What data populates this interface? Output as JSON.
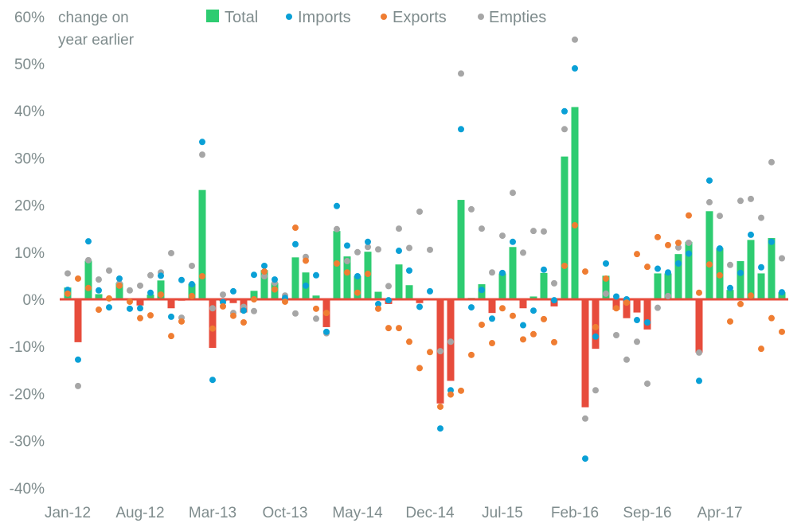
{
  "chart_data": {
    "type": "bar",
    "ylabel": [
      "change on",
      "year earlier"
    ],
    "ylim": [
      -40,
      60
    ],
    "yticks": [
      -40,
      -30,
      -20,
      -10,
      0,
      10,
      20,
      30,
      40,
      50,
      60
    ],
    "ytick_labels": [
      "-40%",
      "-30%",
      "-20%",
      "-10%",
      "0%",
      "10%",
      "20%",
      "30%",
      "40%",
      "50%",
      "60%"
    ],
    "xtick_labels": [
      "Jan-12",
      "Aug-12",
      "Mar-13",
      "Oct-13",
      "May-14",
      "Dec-14",
      "Jul-15",
      "Feb-16",
      "Sep-16",
      "Apr-17"
    ],
    "xtick_every_months": 7,
    "legend_position": "top",
    "grid": false,
    "categories": [
      "Jan-12",
      "Feb-12",
      "Mar-12",
      "Apr-12",
      "May-12",
      "Jun-12",
      "Jul-12",
      "Aug-12",
      "Sep-12",
      "Oct-12",
      "Nov-12",
      "Dec-12",
      "Jan-13",
      "Feb-13",
      "Mar-13",
      "Apr-13",
      "May-13",
      "Jun-13",
      "Jul-13",
      "Aug-13",
      "Sep-13",
      "Oct-13",
      "Nov-13",
      "Dec-13",
      "Jan-14",
      "Feb-14",
      "Mar-14",
      "Apr-14",
      "May-14",
      "Jun-14",
      "Jul-14",
      "Aug-14",
      "Sep-14",
      "Oct-14",
      "Nov-14",
      "Dec-14",
      "Jan-15",
      "Feb-15",
      "Mar-15",
      "Apr-15",
      "May-15",
      "Jun-15",
      "Jul-15",
      "Aug-15",
      "Sep-15",
      "Oct-15",
      "Nov-15",
      "Dec-15",
      "Jan-16",
      "Feb-16",
      "Mar-16",
      "Apr-16",
      "May-16",
      "Jun-16",
      "Jul-16",
      "Aug-16",
      "Sep-16",
      "Oct-16",
      "Nov-16",
      "Dec-16",
      "Jan-17",
      "Feb-17",
      "Mar-17",
      "Apr-17",
      "May-17",
      "Jun-17",
      "Jul-17",
      "Aug-17",
      "Sep-17",
      "Oct-17"
    ],
    "series": [
      {
        "name": "Total",
        "kind": "bar",
        "color_positive": "#2ecc71",
        "color_negative": "#e74c3c",
        "values": [
          2.5,
          -9.1,
          8.2,
          1.1,
          0.0,
          3.5,
          0.0,
          -1.3,
          1.0,
          4.0,
          -1.9,
          -0.3,
          3.3,
          23.2,
          -10.3,
          -0.4,
          -0.8,
          -2.8,
          1.8,
          6.2,
          3.5,
          0.0,
          8.9,
          5.7,
          0.8,
          -5.9,
          14.5,
          9.1,
          4.9,
          10.1,
          1.6,
          -1.0,
          7.4,
          3.0,
          -0.8,
          0.0,
          -22.1,
          -17.3,
          21.1,
          0.3,
          3.2,
          -2.9,
          5.5,
          11.1,
          -1.9,
          0.6,
          5.6,
          -1.5,
          30.3,
          40.8,
          -22.9,
          -10.5,
          5.0,
          -2.2,
          -4.0,
          -2.8,
          -6.4,
          5.5,
          5.5,
          9.6,
          12.2,
          -11.3,
          18.7,
          10.9,
          2.0,
          8.1,
          12.6,
          5.5,
          13.0,
          1.5
        ]
      },
      {
        "name": "Imports",
        "kind": "dot",
        "color": "#0aa0d6",
        "values": [
          2.0,
          -12.8,
          12.3,
          1.9,
          -1.7,
          4.4,
          -2.0,
          -1.9,
          1.4,
          5.0,
          -3.7,
          4.1,
          3.2,
          33.4,
          -17.1,
          -0.6,
          1.7,
          -2.4,
          5.2,
          7.1,
          4.2,
          0.3,
          11.7,
          2.9,
          5.1,
          -6.9,
          19.8,
          11.4,
          4.9,
          12.2,
          -1.0,
          -0.2,
          10.3,
          6.1,
          -1.6,
          1.7,
          -27.4,
          -19.3,
          36.1,
          -1.7,
          2.0,
          -4.1,
          5.6,
          12.2,
          -5.5,
          -2.4,
          6.3,
          -0.2,
          39.9,
          49.0,
          -33.8,
          -7.9,
          7.6,
          0.6,
          0.0,
          -4.4,
          -4.9,
          6.5,
          5.7,
          7.6,
          9.7,
          -17.3,
          25.2,
          10.8,
          2.4,
          5.6,
          13.7,
          6.8,
          12.2,
          1.5
        ]
      },
      {
        "name": "Exports",
        "kind": "dot",
        "color": "#ef7d32",
        "values": [
          1.2,
          4.4,
          2.4,
          -2.2,
          0.2,
          2.9,
          -0.5,
          -4.0,
          -3.4,
          1.0,
          -7.8,
          -4.7,
          0.7,
          4.9,
          -6.2,
          -1.5,
          -3.5,
          -4.9,
          0.0,
          5.9,
          2.1,
          -0.5,
          15.2,
          8.2,
          -2.0,
          -2.9,
          7.6,
          5.7,
          1.4,
          5.4,
          -2.0,
          -6.1,
          -6.1,
          -9.0,
          -14.6,
          -11.2,
          -22.8,
          -20.2,
          -19.4,
          -11.8,
          -5.4,
          -9.3,
          -1.9,
          -3.5,
          -8.5,
          -7.4,
          -4.2,
          -9.1,
          7.1,
          15.7,
          5.9,
          -5.9,
          4.4,
          -1.9,
          -0.7,
          9.6,
          6.9,
          13.2,
          11.5,
          12.0,
          17.8,
          1.4,
          7.4,
          5.1,
          -4.7,
          -1.0,
          0.8,
          -10.5,
          -4.0,
          -6.9
        ]
      },
      {
        "name": "Empties",
        "kind": "dot",
        "color": "#a6a6a6",
        "values": [
          5.5,
          -18.4,
          8.3,
          4.2,
          6.1,
          3.4,
          1.9,
          2.9,
          5.1,
          5.7,
          9.8,
          -3.9,
          7.1,
          30.7,
          -1.9,
          1.0,
          -2.9,
          -1.6,
          -2.5,
          4.9,
          3.5,
          0.8,
          -3.0,
          9.0,
          -4.1,
          -7.2,
          14.9,
          8.1,
          10.0,
          11.1,
          10.6,
          2.8,
          15.0,
          10.9,
          18.6,
          10.5,
          -11.0,
          -9.0,
          47.9,
          19.1,
          15.0,
          5.7,
          13.5,
          22.6,
          9.9,
          14.5,
          14.4,
          3.4,
          36.1,
          55.1,
          -25.3,
          -19.3,
          1.2,
          -7.6,
          -12.8,
          -9.0,
          -17.9,
          -1.8,
          0.7,
          11.0,
          12.0,
          -11.3,
          20.6,
          17.7,
          7.3,
          20.9,
          21.3,
          17.3,
          29.1,
          8.7
        ]
      }
    ]
  }
}
